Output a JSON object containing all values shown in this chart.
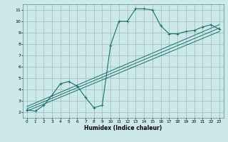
{
  "xlabel": "Humidex (Indice chaleur)",
  "bg_color": "#cce8e8",
  "grid_color": "#99bbbb",
  "line_color": "#1a6e6e",
  "xlim": [
    -0.5,
    23.5
  ],
  "ylim": [
    1.5,
    11.5
  ],
  "xticks": [
    0,
    1,
    2,
    3,
    4,
    5,
    6,
    7,
    8,
    9,
    10,
    11,
    12,
    13,
    14,
    15,
    16,
    17,
    18,
    19,
    20,
    21,
    22,
    23
  ],
  "yticks": [
    2,
    3,
    4,
    5,
    6,
    7,
    8,
    9,
    10,
    11
  ],
  "main_x": [
    0,
    1,
    2,
    3,
    4,
    5,
    6,
    7,
    8,
    9,
    10,
    11,
    12,
    13,
    14,
    15,
    16,
    17,
    18,
    19,
    20,
    21,
    22,
    23
  ],
  "main_y": [
    2.2,
    2.1,
    2.6,
    3.5,
    4.5,
    4.7,
    4.3,
    3.3,
    2.4,
    2.6,
    7.9,
    10.0,
    10.0,
    11.1,
    11.1,
    11.0,
    9.6,
    8.9,
    8.9,
    9.1,
    9.2,
    9.5,
    9.7,
    9.3
  ],
  "reg_lines": [
    {
      "x": [
        0,
        23
      ],
      "y": [
        2.1,
        9.1
      ]
    },
    {
      "x": [
        0,
        23
      ],
      "y": [
        2.3,
        9.4
      ]
    },
    {
      "x": [
        0,
        23
      ],
      "y": [
        2.5,
        9.7
      ]
    }
  ]
}
